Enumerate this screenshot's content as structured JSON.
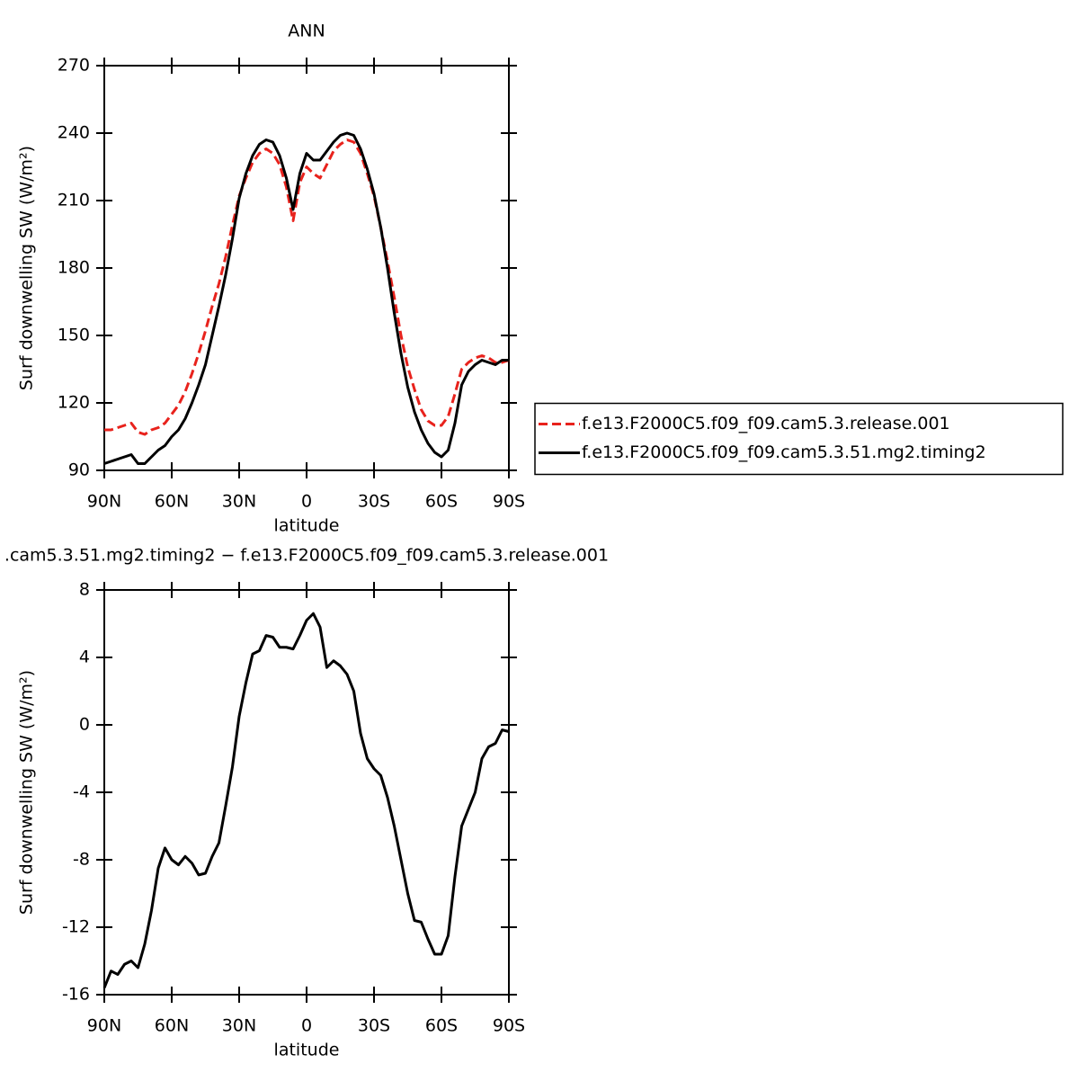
{
  "chart_data": [
    {
      "type": "line",
      "title": "ANN",
      "x_label": "latitude",
      "y_label": "Surf downwelling SW (W/m²)",
      "xlim": [
        90,
        -90
      ],
      "xticks": [
        {
          "value": 90,
          "label": "90N"
        },
        {
          "value": 60,
          "label": "60N"
        },
        {
          "value": 30,
          "label": "30N"
        },
        0,
        {
          "value": -30,
          "label": "30S"
        },
        {
          "value": -60,
          "label": "60S"
        },
        {
          "value": -90,
          "label": "90S"
        }
      ],
      "ylim": [
        90,
        270
      ],
      "yticks": [
        90,
        120,
        150,
        180,
        210,
        240,
        270
      ],
      "legend": "outside-right",
      "x": [
        90,
        87,
        84,
        81,
        78,
        75,
        72,
        69,
        66,
        63,
        60,
        57,
        54,
        51,
        48,
        45,
        42,
        39,
        36,
        33,
        30,
        27,
        24,
        21,
        18,
        15,
        12,
        9,
        6,
        3,
        0,
        -3,
        -6,
        -9,
        -12,
        -15,
        -18,
        -21,
        -24,
        -27,
        -30,
        -33,
        -36,
        -39,
        -42,
        -45,
        -48,
        -51,
        -54,
        -57,
        -60,
        -63,
        -66,
        -69,
        -72,
        -75,
        -78,
        -81,
        -84,
        -87,
        -90
      ],
      "series": [
        {
          "name": "f.e13.F2000C5.f09_f09.cam5.3.release.001",
          "color": "#e8221c",
          "line_style": "dashed",
          "values": [
            108,
            108,
            109,
            110,
            111,
            107,
            106,
            108,
            109,
            111,
            115,
            119,
            125,
            133,
            142,
            152,
            163,
            173,
            185,
            199,
            212,
            220,
            227,
            231,
            233,
            231,
            226,
            216,
            201,
            218,
            225,
            222,
            220,
            226,
            232,
            235,
            237,
            236,
            231,
            222,
            212,
            198,
            183,
            167,
            150,
            136,
            126,
            117,
            112,
            110,
            110,
            114,
            124,
            135,
            138,
            140,
            141,
            140,
            138,
            138,
            139
          ]
        },
        {
          "name": "f.e13.F2000C5.f09_f09.cam5.3.51.mg2.timing2",
          "color": "#000000",
          "line_style": "solid",
          "values": [
            93,
            94,
            95,
            96,
            97,
            93,
            93,
            96,
            99,
            101,
            105,
            108,
            113,
            120,
            128,
            137,
            150,
            163,
            177,
            193,
            211,
            222,
            230,
            235,
            237,
            236,
            230,
            220,
            206,
            222,
            231,
            228,
            228,
            232,
            236,
            239,
            240,
            239,
            233,
            224,
            213,
            198,
            180,
            160,
            142,
            127,
            116,
            108,
            102,
            98,
            96,
            99,
            111,
            128,
            134,
            137,
            139,
            138,
            137,
            139,
            139
          ]
        }
      ]
    },
    {
      "type": "line",
      "title": ".cam5.3.51.mg2.timing2 − f.e13.F2000C5.f09_f09.cam5.3.release.001",
      "x_label": "latitude",
      "y_label": "Surf downwelling SW (W/m²)",
      "xlim": [
        90,
        -90
      ],
      "xticks": [
        {
          "value": 90,
          "label": "90N"
        },
        {
          "value": 60,
          "label": "60N"
        },
        {
          "value": 30,
          "label": "30N"
        },
        0,
        {
          "value": -30,
          "label": "30S"
        },
        {
          "value": -60,
          "label": "60S"
        },
        {
          "value": -90,
          "label": "90S"
        }
      ],
      "ylim": [
        -16,
        8
      ],
      "yticks": [
        -16,
        -12,
        -8,
        -4,
        0,
        4,
        8
      ],
      "x": [
        90,
        87,
        84,
        81,
        78,
        75,
        72,
        69,
        66,
        63,
        60,
        57,
        54,
        51,
        48,
        45,
        42,
        39,
        36,
        33,
        30,
        27,
        24,
        21,
        18,
        15,
        12,
        9,
        6,
        3,
        0,
        -3,
        -6,
        -9,
        -12,
        -15,
        -18,
        -21,
        -24,
        -27,
        -30,
        -33,
        -36,
        -39,
        -42,
        -45,
        -48,
        -51,
        -54,
        -57,
        -60,
        -63,
        -66,
        -69,
        -72,
        -75,
        -78,
        -81,
        -84,
        -87,
        -90
      ],
      "series": [
        {
          "color": "#000000",
          "line_style": "solid",
          "values": [
            -15.6,
            -14.6,
            -14.8,
            -14.2,
            -14,
            -14.4,
            -13,
            -11,
            -8.5,
            -7.3,
            -8,
            -8.3,
            -7.8,
            -8.2,
            -8.9,
            -8.8,
            -7.8,
            -7,
            -4.8,
            -2.5,
            0.5,
            2.5,
            4.2,
            4.4,
            5.3,
            5.2,
            4.6,
            4.6,
            4.5,
            5.3,
            6.2,
            6.6,
            5.8,
            3.4,
            3.8,
            3.5,
            3,
            2,
            -0.5,
            -2,
            -2.6,
            -3,
            -4.3,
            -6,
            -8,
            -10,
            -11.6,
            -11.7,
            -12.7,
            -13.6,
            -13.6,
            -12.5,
            -9,
            -6,
            -5,
            -4,
            -2,
            -1.3,
            -1.1,
            -0.3,
            -0.4
          ]
        }
      ]
    }
  ]
}
